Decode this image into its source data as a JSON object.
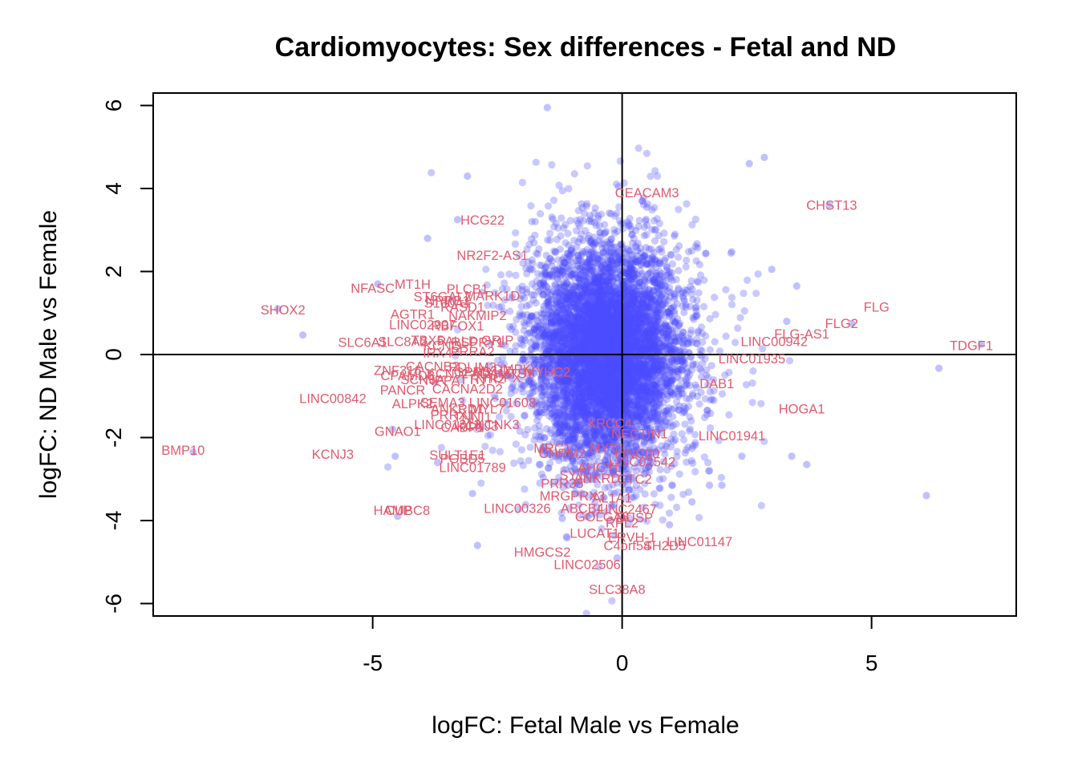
{
  "chart_data": {
    "type": "scatter",
    "title": "Cardiomyocytes: Sex differences - Fetal and ND",
    "xlabel": "logFC: Fetal Male vs Female",
    "ylabel": "logFC: ND Male vs Female",
    "xlim": [
      -9.4,
      7.9
    ],
    "ylim": [
      -6.3,
      6.3
    ],
    "xticks": [
      -5,
      0,
      5
    ],
    "xtick_labels": [
      "-5",
      "0",
      "5"
    ],
    "yticks": [
      -6,
      -4,
      -2,
      0,
      2,
      4,
      6
    ],
    "ytick_labels": [
      "-6",
      "-4",
      "-2",
      "0",
      "2",
      "4",
      "6"
    ],
    "reference_lines": {
      "x": 0,
      "y": 0
    },
    "point_color": "#4d4dff",
    "label_color": "#e05a6e",
    "axis_color": "#000000",
    "cloud": {
      "n": 6500,
      "center_x": -0.3,
      "center_y": 0.0,
      "sd_x": 0.72,
      "sd_y": 1.3
    },
    "points": [
      [
        -1.5,
        5.95
      ],
      [
        -6.4,
        0.47
      ],
      [
        6.35,
        -0.33
      ],
      [
        6.1,
        -3.4
      ],
      [
        7.2,
        0.25
      ],
      [
        4.15,
        3.6
      ],
      [
        2.85,
        4.75
      ],
      [
        2.55,
        4.6
      ],
      [
        -4.5,
        -3.9
      ],
      [
        -2.9,
        -4.6
      ],
      [
        -4.6,
        -1.8
      ],
      [
        -3.1,
        4.3
      ],
      [
        -3.9,
        2.8
      ],
      [
        -3.0,
        -3.35
      ],
      [
        3.7,
        -2.65
      ],
      [
        3.4,
        -2.45
      ],
      [
        2.4,
        -2.45
      ],
      [
        2.0,
        -3.15
      ],
      [
        1.75,
        -3.15
      ],
      [
        1.4,
        -3.55
      ],
      [
        0.95,
        -4.1
      ],
      [
        -0.1,
        -4.9
      ],
      [
        -1.2,
        -3.95
      ],
      [
        4.6,
        0.75
      ],
      [
        3.5,
        1.65
      ],
      [
        -8.6,
        -2.35
      ],
      [
        -6.9,
        1.1
      ],
      [
        -3.3,
        3.25
      ],
      [
        -4.9,
        1.7
      ],
      [
        -3.7,
        -2.6
      ],
      [
        -4.55,
        -2.45
      ],
      [
        0.5,
        3.55
      ],
      [
        3.0,
        2.05
      ],
      [
        3.3,
        0.8
      ]
    ],
    "labels": [
      {
        "text": "CEACAM3",
        "x": 0.5,
        "y": 3.9
      },
      {
        "text": "CHST13",
        "x": 4.2,
        "y": 3.6
      },
      {
        "text": "HCG22",
        "x": -2.8,
        "y": 3.25
      },
      {
        "text": "NR2F2-AS1",
        "x": -2.6,
        "y": 2.4
      },
      {
        "text": "MT1H",
        "x": -4.2,
        "y": 1.7
      },
      {
        "text": "NFASC",
        "x": -5.0,
        "y": 1.6
      },
      {
        "text": "PLCB1",
        "x": -3.1,
        "y": 1.58
      },
      {
        "text": "ST6GAL2",
        "x": -3.6,
        "y": 1.4
      },
      {
        "text": "NPRB1",
        "x": -3.5,
        "y": 1.3
      },
      {
        "text": "MARK1D",
        "x": -2.6,
        "y": 1.42
      },
      {
        "text": "S100A1",
        "x": -3.5,
        "y": 1.25
      },
      {
        "text": "RASD1",
        "x": -3.2,
        "y": 1.15
      },
      {
        "text": "SHOX2",
        "x": -6.8,
        "y": 1.08
      },
      {
        "text": "FLG",
        "x": 5.1,
        "y": 1.15
      },
      {
        "text": "AGTR1",
        "x": -4.2,
        "y": 0.98
      },
      {
        "text": "NAKMIP2",
        "x": -2.9,
        "y": 0.95
      },
      {
        "text": "LINC02907",
        "x": -4.0,
        "y": 0.72
      },
      {
        "text": "RBFOX1",
        "x": -3.3,
        "y": 0.7
      },
      {
        "text": "FLG2",
        "x": 4.4,
        "y": 0.75
      },
      {
        "text": "FLG-AS1",
        "x": 3.6,
        "y": 0.5
      },
      {
        "text": "LINC00942",
        "x": 3.05,
        "y": 0.32
      },
      {
        "text": "SLC6A1",
        "x": -5.2,
        "y": 0.3
      },
      {
        "text": "SLC8A2",
        "x": -4.4,
        "y": 0.32
      },
      {
        "text": "TBX5",
        "x": -3.9,
        "y": 0.35
      },
      {
        "text": "PALLD",
        "x": -3.3,
        "y": 0.33
      },
      {
        "text": "RSPRY1",
        "x": -2.9,
        "y": 0.3
      },
      {
        "text": "GRIP",
        "x": -2.5,
        "y": 0.35
      },
      {
        "text": "KCNQ",
        "x": -3.6,
        "y": 0.22
      },
      {
        "text": "IRX4",
        "x": -3.7,
        "y": 0.05
      },
      {
        "text": "PRRA2",
        "x": -3.0,
        "y": 0.08
      },
      {
        "text": "TDGF1",
        "x": 7.0,
        "y": 0.22
      },
      {
        "text": "LINC01935",
        "x": 2.6,
        "y": -0.1
      },
      {
        "text": "ZNF316",
        "x": -4.5,
        "y": -0.38
      },
      {
        "text": "CACNB2",
        "x": -3.8,
        "y": -0.28
      },
      {
        "text": "PDLIM3",
        "x": -3.0,
        "y": -0.3
      },
      {
        "text": "KCNJ2",
        "x": -3.5,
        "y": -0.45
      },
      {
        "text": "GPRS",
        "x": -3.0,
        "y": -0.42
      },
      {
        "text": "MYH7",
        "x": -2.6,
        "y": -0.4
      },
      {
        "text": "DMPK",
        "x": -2.2,
        "y": -0.35
      },
      {
        "text": "ADAMTS1",
        "x": -2.4,
        "y": -0.45
      },
      {
        "text": "MYHC2",
        "x": -1.5,
        "y": -0.42
      },
      {
        "text": "CPAMD8",
        "x": -4.3,
        "y": -0.5
      },
      {
        "text": "SCN5A",
        "x": -4.0,
        "y": -0.6
      },
      {
        "text": "NPPA",
        "x": -3.6,
        "y": -0.62
      },
      {
        "text": "TTN",
        "x": -3.0,
        "y": -0.6
      },
      {
        "text": "RYR2",
        "x": -2.7,
        "y": -0.58
      },
      {
        "text": "HOPX",
        "x": -2.4,
        "y": -0.55
      },
      {
        "text": "PANCR",
        "x": -4.4,
        "y": -0.85
      },
      {
        "text": "CACNA2D2",
        "x": -3.1,
        "y": -0.82
      },
      {
        "text": "DAB1",
        "x": 1.9,
        "y": -0.7
      },
      {
        "text": "LINC00842",
        "x": -5.8,
        "y": -1.05
      },
      {
        "text": "ALPK2",
        "x": -4.2,
        "y": -1.18
      },
      {
        "text": "SEMA3",
        "x": -3.6,
        "y": -1.15
      },
      {
        "text": "LINC01608",
        "x": -2.4,
        "y": -1.15
      },
      {
        "text": "ANKRD1",
        "x": -3.3,
        "y": -1.3
      },
      {
        "text": "MYL7",
        "x": -2.7,
        "y": -1.3
      },
      {
        "text": "HOGA1",
        "x": 3.6,
        "y": -1.3
      },
      {
        "text": "PRRX1",
        "x": -3.4,
        "y": -1.45
      },
      {
        "text": "TNNI1",
        "x": -3.0,
        "y": -1.5
      },
      {
        "text": "LINC01313",
        "x": -3.5,
        "y": -1.68
      },
      {
        "text": "CABP1",
        "x": -3.2,
        "y": -1.75
      },
      {
        "text": "KCNJ3",
        "x": -2.9,
        "y": -1.72
      },
      {
        "text": "KCNK3",
        "x": -2.5,
        "y": -1.68
      },
      {
        "text": "XRCC4",
        "x": -0.25,
        "y": -1.65
      },
      {
        "text": "GNAO1",
        "x": -4.5,
        "y": -1.85
      },
      {
        "text": "NECTIN1",
        "x": 0.35,
        "y": -1.9
      },
      {
        "text": "LINC01941",
        "x": 2.2,
        "y": -1.95
      },
      {
        "text": "BMP10",
        "x": -8.8,
        "y": -2.3
      },
      {
        "text": "KCNJ3",
        "x": -5.8,
        "y": -2.4
      },
      {
        "text": "MRC1",
        "x": -1.4,
        "y": -2.25
      },
      {
        "text": "MYT1",
        "x": -0.3,
        "y": -2.25
      },
      {
        "text": "CHRM2",
        "x": -1.2,
        "y": -2.38
      },
      {
        "text": "LINC00",
        "x": 0.3,
        "y": -2.38
      },
      {
        "text": "SULT1E1",
        "x": -3.3,
        "y": -2.42
      },
      {
        "text": "PGBD5",
        "x": -3.2,
        "y": -2.5
      },
      {
        "text": "LINC02542",
        "x": 0.4,
        "y": -2.58
      },
      {
        "text": "AHCYL",
        "x": -0.45,
        "y": -2.72
      },
      {
        "text": "LINC01789",
        "x": -3.0,
        "y": -2.72
      },
      {
        "text": "SYT",
        "x": -1.0,
        "y": -2.9
      },
      {
        "text": "ANKRD",
        "x": -0.5,
        "y": -2.98
      },
      {
        "text": "CTC2",
        "x": 0.25,
        "y": -3.0
      },
      {
        "text": "PRR35",
        "x": -1.2,
        "y": -3.1
      },
      {
        "text": "MRGPRX3",
        "x": -1.0,
        "y": -3.4
      },
      {
        "text": "AL1A1",
        "x": -0.2,
        "y": -3.45
      },
      {
        "text": "LINC00326",
        "x": -2.1,
        "y": -3.7
      },
      {
        "text": "ABCB4",
        "x": -0.8,
        "y": -3.7
      },
      {
        "text": "LINC2467",
        "x": 0.1,
        "y": -3.72
      },
      {
        "text": "HAMP",
        "x": -4.6,
        "y": -3.75
      },
      {
        "text": "CUBC8",
        "x": -4.3,
        "y": -3.75
      },
      {
        "text": "GOLGA8",
        "x": -0.4,
        "y": -3.9
      },
      {
        "text": "DUSP",
        "x": 0.25,
        "y": -3.92
      },
      {
        "text": "RPL2",
        "x": 0.0,
        "y": -4.05
      },
      {
        "text": "LUCAT1",
        "x": -0.55,
        "y": -4.3
      },
      {
        "text": "ERVH-1",
        "x": 0.2,
        "y": -4.4
      },
      {
        "text": "LINC01147",
        "x": 1.55,
        "y": -4.5
      },
      {
        "text": "C4orf54",
        "x": 0.1,
        "y": -4.6
      },
      {
        "text": "SH2D5",
        "x": 0.85,
        "y": -4.6
      },
      {
        "text": "HMGCS2",
        "x": -1.6,
        "y": -4.75
      },
      {
        "text": "LINC02506",
        "x": -0.7,
        "y": -5.05
      },
      {
        "text": "SLC38A8",
        "x": -0.1,
        "y": -5.65
      }
    ]
  }
}
